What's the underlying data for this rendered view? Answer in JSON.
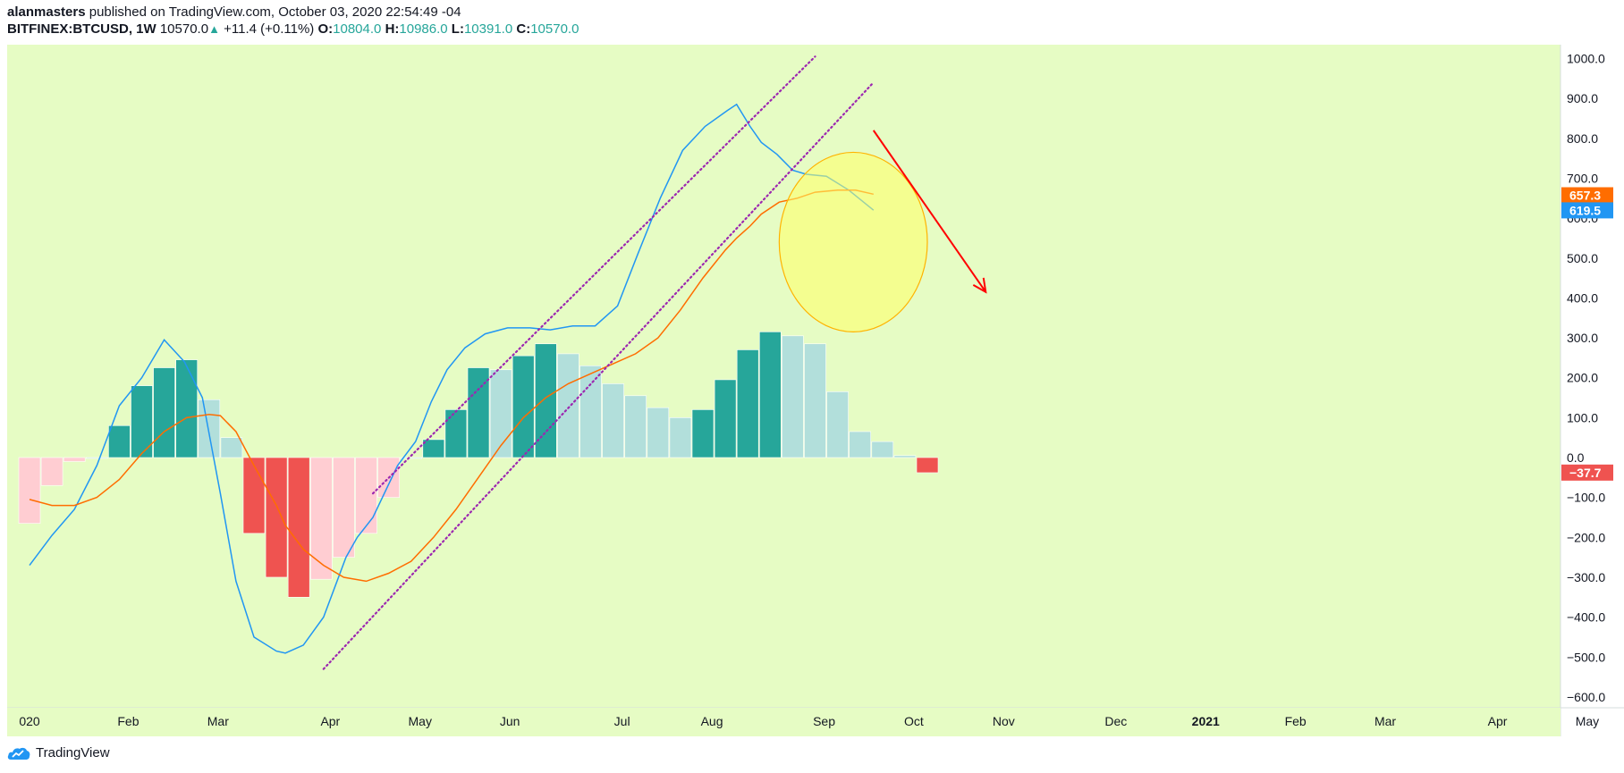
{
  "header": {
    "author": "alanmasters",
    "published_text": "published on TradingView.com, October 03, 2020 22:54:49 -04",
    "symbol": "BITFINEX:BTCUSD, 1W",
    "last": "10570.0",
    "change": "+11.4 (+0.11%)",
    "o_label": "O:",
    "o": "10804.0",
    "h_label": "H:",
    "h": "10986.0",
    "l_label": "L:",
    "l": "10391.0",
    "c_label": "C:",
    "c": "10570.0"
  },
  "footer": {
    "brand": "TradingView"
  },
  "colors": {
    "background": "#e6fcc4",
    "hist_pos_strong": "#26a69a",
    "hist_pos_weak": "#b2dfdb",
    "hist_neg_strong": "#ef5350",
    "hist_neg_weak": "#ffcdd2",
    "macd_line": "#2196f3",
    "signal_line": "#ff6d00",
    "trend_lines": "#9c27b0",
    "annotation_arrow": "#ff0000",
    "ellipse_fill": "#ffff66",
    "ellipse_stroke": "#ffb300"
  },
  "chart_data": {
    "type": "bar",
    "title": "",
    "indicator": "MACD",
    "ylim": [
      -630,
      1040
    ],
    "y_ticks": [
      1000,
      900,
      800,
      700,
      600,
      500,
      400,
      300,
      200,
      100,
      0,
      -100,
      -200,
      -300,
      -400,
      -500,
      -600
    ],
    "y_tick_labels": [
      "1000.0",
      "900.0",
      "800.0",
      "700.0",
      "600.0",
      "500.0",
      "400.0",
      "300.0",
      "200.0",
      "100.0",
      "0.0",
      "−100.0",
      "−200.0",
      "−300.0",
      "−400.0",
      "−500.0",
      "−600.0"
    ],
    "x_labels": [
      "020",
      "Feb",
      "Mar",
      "Apr",
      "May",
      "Jun",
      "Jul",
      "Aug",
      "Sep",
      "Oct",
      "Nov",
      "Dec",
      "2021",
      "Feb",
      "Mar",
      "Apr",
      "May"
    ],
    "x_label_weeks": [
      0,
      4.4,
      8.4,
      13.4,
      17.4,
      21.4,
      26.4,
      30.4,
      35.4,
      39.4,
      43.4,
      48.4,
      52.4,
      56.4,
      60.4,
      65.4,
      69.4
    ],
    "weeks_per_x_unit": "weekly bars, index 0 = first visible bar (late Dec 2019)",
    "histogram": {
      "name": "Histogram",
      "values": [
        -165,
        -70,
        -10,
        0,
        80,
        180,
        225,
        245,
        145,
        50,
        -190,
        -300,
        -350,
        -305,
        -250,
        -190,
        -100,
        0,
        45,
        120,
        225,
        220,
        255,
        285,
        260,
        230,
        185,
        155,
        125,
        100,
        120,
        195,
        270,
        315,
        305,
        285,
        165,
        65,
        40,
        5,
        -38
      ],
      "shades": [
        "nw",
        "nw",
        "nw",
        "pw",
        "ps",
        "ps",
        "ps",
        "ps",
        "pw",
        "pw",
        "ns",
        "ns",
        "ns",
        "nw",
        "nw",
        "nw",
        "nw",
        "pw",
        "ps",
        "ps",
        "ps",
        "pw",
        "ps",
        "ps",
        "pw",
        "pw",
        "pw",
        "pw",
        "pw",
        "pw",
        "ps",
        "ps",
        "ps",
        "ps",
        "pw",
        "pw",
        "pw",
        "pw",
        "pw",
        "pw",
        "ns"
      ]
    },
    "series": [
      {
        "name": "MACD",
        "x": [
          0,
          1,
          2,
          3,
          4,
          5,
          6,
          6.9,
          7.7,
          8.5,
          9.2,
          10,
          11,
          11.4,
          12.2,
          13.1,
          14.1,
          14.6,
          15.3,
          16.4,
          17.2,
          17.9,
          18.6,
          19.4,
          20.3,
          21.3,
          22.3,
          23.2,
          24.2,
          25.2,
          26.2,
          27.1,
          28.1,
          29.1,
          30.1,
          31.1,
          31.5,
          32.1,
          32.6,
          33.3,
          34,
          34.6,
          35.5,
          36.5,
          37.6
        ],
        "values": [
          -270,
          -195,
          -130,
          -20,
          130,
          200,
          295,
          240,
          150,
          -90,
          -310,
          -450,
          -485,
          -490,
          -470,
          -400,
          -250,
          -200,
          -150,
          -20,
          40,
          140,
          220,
          275,
          310,
          325,
          325,
          320,
          330,
          330,
          380,
          510,
          650,
          770,
          830,
          870,
          885,
          830,
          790,
          760,
          720,
          710,
          705,
          670,
          620
        ]
      },
      {
        "name": "Signal",
        "x": [
          0,
          1,
          2,
          3,
          4,
          5,
          6,
          7,
          8,
          8.5,
          9.2,
          10,
          11,
          11.4,
          12.2,
          13.1,
          14,
          15,
          16,
          17,
          18,
          19,
          20,
          21,
          22,
          23,
          24,
          25,
          26,
          27,
          28,
          29,
          30,
          31,
          31.5,
          32.1,
          32.6,
          33.4,
          34.2,
          35,
          36,
          36.8,
          37.6
        ],
        "values": [
          -105,
          -120,
          -120,
          -100,
          -55,
          10,
          65,
          100,
          108,
          105,
          65,
          -20,
          -120,
          -170,
          -230,
          -270,
          -300,
          -310,
          -290,
          -260,
          -200,
          -130,
          -50,
          30,
          100,
          150,
          185,
          210,
          235,
          260,
          300,
          370,
          450,
          520,
          550,
          580,
          610,
          640,
          650,
          665,
          670,
          670,
          660
        ]
      }
    ],
    "drawings": {
      "trend_channel": [
        {
          "style": "dotted",
          "from": [
            15.3,
            -90
          ],
          "to": [
            35,
            1005
          ]
        },
        {
          "style": "dotted",
          "from": [
            13.1,
            -530
          ],
          "to": [
            37.6,
            940
          ]
        }
      ],
      "highlight_ellipse": {
        "center": [
          36.7,
          540
        ],
        "rx_weeks": 3.3,
        "ry_value": 225
      },
      "down_arrow": {
        "from": [
          37.6,
          820
        ],
        "to": [
          42.6,
          415
        ]
      }
    },
    "price_badges": [
      {
        "series": "Signal",
        "text": "657.3",
        "value": 657.3,
        "color": "#ff6d00"
      },
      {
        "series": "MACD",
        "text": "619.5",
        "value": 619.5,
        "color": "#2196f3"
      },
      {
        "series": "Histogram",
        "text": "−37.7",
        "value": -37.7,
        "color": "#ef5350"
      }
    ],
    "grid": false,
    "legend": "none"
  }
}
